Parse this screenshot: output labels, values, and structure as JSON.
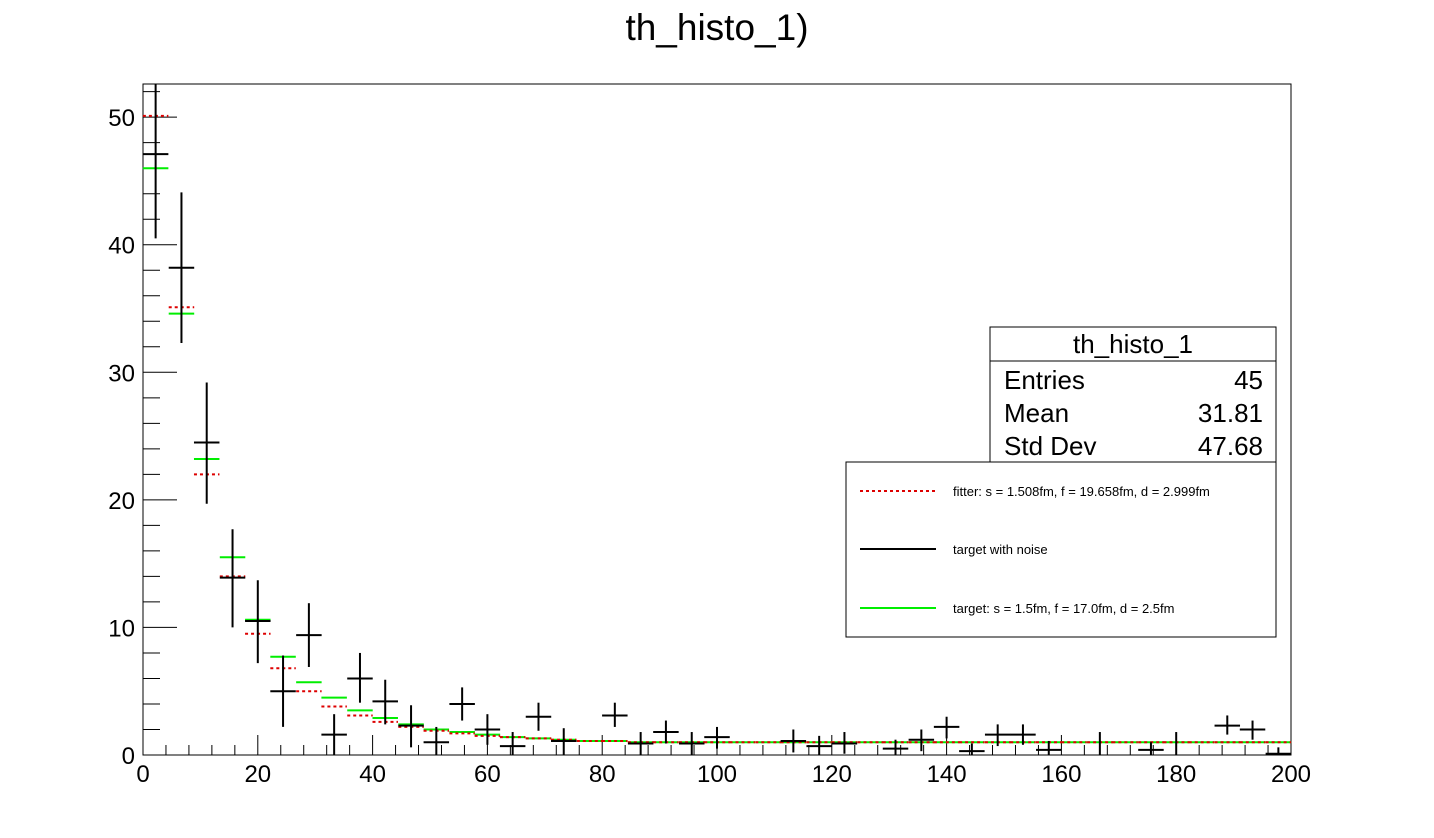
{
  "chart_data": {
    "type": "histogram",
    "title": "th_histo_1)",
    "xlabel": "",
    "ylabel": "",
    "xlim": [
      0,
      200
    ],
    "ylim": [
      0,
      52.6
    ],
    "grid": false,
    "bin_width": 4.44,
    "x_ticks": [
      0,
      20,
      40,
      60,
      80,
      100,
      120,
      140,
      160,
      180,
      200
    ],
    "y_ticks": [
      0,
      10,
      20,
      30,
      40,
      50
    ],
    "series": [
      {
        "name": "target with noise",
        "style": "error-cross",
        "color": "#000000",
        "points": [
          {
            "x": 2.2,
            "y": 47.1,
            "lo": 40.5,
            "hi": 52.6
          },
          {
            "x": 6.7,
            "y": 38.2,
            "lo": 32.3,
            "hi": 44.1
          },
          {
            "x": 11.1,
            "y": 24.5,
            "lo": 19.7,
            "hi": 29.2
          },
          {
            "x": 15.6,
            "y": 13.9,
            "lo": 10.0,
            "hi": 17.7
          },
          {
            "x": 20.0,
            "y": 10.5,
            "lo": 7.2,
            "hi": 13.7
          },
          {
            "x": 24.4,
            "y": 5.0,
            "lo": 2.2,
            "hi": 7.8
          },
          {
            "x": 28.9,
            "y": 9.4,
            "lo": 6.9,
            "hi": 11.9
          },
          {
            "x": 33.3,
            "y": 1.6,
            "lo": 0.0,
            "hi": 3.2
          },
          {
            "x": 37.8,
            "y": 6.0,
            "lo": 4.1,
            "hi": 8.0
          },
          {
            "x": 42.2,
            "y": 4.2,
            "lo": 2.4,
            "hi": 5.9
          },
          {
            "x": 46.7,
            "y": 2.3,
            "lo": 0.6,
            "hi": 3.9
          },
          {
            "x": 51.1,
            "y": 1.0,
            "lo": 0.0,
            "hi": 2.2
          },
          {
            "x": 55.6,
            "y": 4.0,
            "lo": 2.7,
            "hi": 5.3
          },
          {
            "x": 60.0,
            "y": 2.0,
            "lo": 0.8,
            "hi": 3.2
          },
          {
            "x": 64.4,
            "y": 0.7,
            "lo": 0.0,
            "hi": 1.8
          },
          {
            "x": 68.9,
            "y": 3.0,
            "lo": 1.9,
            "hi": 4.1
          },
          {
            "x": 73.3,
            "y": 1.1,
            "lo": 0.0,
            "hi": 2.1
          },
          {
            "x": 82.2,
            "y": 3.1,
            "lo": 2.2,
            "hi": 4.1
          },
          {
            "x": 86.7,
            "y": 0.9,
            "lo": 0.0,
            "hi": 1.8
          },
          {
            "x": 91.1,
            "y": 1.8,
            "lo": 0.9,
            "hi": 2.7
          },
          {
            "x": 95.6,
            "y": 0.9,
            "lo": 0.0,
            "hi": 1.8
          },
          {
            "x": 100.0,
            "y": 1.4,
            "lo": 0.5,
            "hi": 2.2
          },
          {
            "x": 113.3,
            "y": 1.1,
            "lo": 0.2,
            "hi": 2.0
          },
          {
            "x": 117.8,
            "y": 0.7,
            "lo": 0.0,
            "hi": 1.5
          },
          {
            "x": 122.2,
            "y": 0.9,
            "lo": 0.1,
            "hi": 1.8
          },
          {
            "x": 131.1,
            "y": 0.5,
            "lo": 0.0,
            "hi": 1.2
          },
          {
            "x": 135.6,
            "y": 1.2,
            "lo": 0.3,
            "hi": 2.0
          },
          {
            "x": 140.0,
            "y": 2.2,
            "lo": 1.3,
            "hi": 3.0
          },
          {
            "x": 144.4,
            "y": 0.3,
            "lo": 0.0,
            "hi": 0.9
          },
          {
            "x": 148.9,
            "y": 1.6,
            "lo": 0.7,
            "hi": 2.4
          },
          {
            "x": 153.3,
            "y": 1.6,
            "lo": 0.8,
            "hi": 2.4
          },
          {
            "x": 157.8,
            "y": 0.4,
            "lo": 0.0,
            "hi": 1.1
          },
          {
            "x": 175.6,
            "y": 0.4,
            "lo": 0.0,
            "hi": 1.0
          },
          {
            "x": 188.9,
            "y": 2.3,
            "lo": 1.6,
            "hi": 3.1
          },
          {
            "x": 193.3,
            "y": 2.0,
            "lo": 1.2,
            "hi": 2.7
          },
          {
            "x": 197.8,
            "y": 0.1,
            "lo": 0.0,
            "hi": 0.6
          }
        ],
        "bare_bars": [
          {
            "x": 166.7,
            "lo": 0.0,
            "hi": 1.8
          },
          {
            "x": 180.0,
            "lo": 0.0,
            "hi": 1.8
          }
        ]
      },
      {
        "name": "target: s = 1.5fm, f = 17.0fm, d = 2.5fm",
        "style": "step-marker",
        "color": "#00ee00",
        "points": [
          {
            "x": 2.2,
            "y": 46.0
          },
          {
            "x": 6.7,
            "y": 34.6
          },
          {
            "x": 11.1,
            "y": 23.2
          },
          {
            "x": 15.6,
            "y": 15.5
          },
          {
            "x": 20.0,
            "y": 10.6
          },
          {
            "x": 24.4,
            "y": 7.7
          },
          {
            "x": 28.9,
            "y": 5.7
          },
          {
            "x": 33.3,
            "y": 4.5
          },
          {
            "x": 37.8,
            "y": 3.5
          },
          {
            "x": 42.2,
            "y": 2.9
          },
          {
            "x": 46.7,
            "y": 2.4
          },
          {
            "x": 51.1,
            "y": 2.0
          },
          {
            "x": 55.6,
            "y": 1.8
          },
          {
            "x": 60.0,
            "y": 1.6
          },
          {
            "x": 64.4,
            "y": 1.4
          },
          {
            "x": 68.9,
            "y": 1.3
          },
          {
            "x": 73.3,
            "y": 1.2
          },
          {
            "x": 77.8,
            "y": 1.1
          },
          {
            "x": 82.2,
            "y": 1.1
          },
          {
            "x": 86.7,
            "y": 1.0
          },
          {
            "x": 91.1,
            "y": 1.0
          },
          {
            "x": 95.6,
            "y": 1.0
          },
          {
            "x": 100.0,
            "y": 1.0
          },
          {
            "x": 104.4,
            "y": 1.0
          },
          {
            "x": 108.9,
            "y": 1.0
          },
          {
            "x": 113.3,
            "y": 1.0
          },
          {
            "x": 117.8,
            "y": 1.0
          },
          {
            "x": 122.2,
            "y": 1.0
          },
          {
            "x": 126.7,
            "y": 1.0
          },
          {
            "x": 131.1,
            "y": 1.0
          },
          {
            "x": 135.6,
            "y": 1.0
          },
          {
            "x": 140.0,
            "y": 1.0
          },
          {
            "x": 144.4,
            "y": 1.0
          },
          {
            "x": 148.9,
            "y": 1.0
          },
          {
            "x": 153.3,
            "y": 1.0
          },
          {
            "x": 157.8,
            "y": 1.0
          },
          {
            "x": 162.2,
            "y": 1.0
          },
          {
            "x": 166.7,
            "y": 1.0
          },
          {
            "x": 171.1,
            "y": 1.0
          },
          {
            "x": 175.6,
            "y": 1.0
          },
          {
            "x": 180.0,
            "y": 1.0
          },
          {
            "x": 184.4,
            "y": 1.0
          },
          {
            "x": 188.9,
            "y": 1.0
          },
          {
            "x": 193.3,
            "y": 1.0
          },
          {
            "x": 197.8,
            "y": 1.0
          }
        ]
      },
      {
        "name": "fitter: s = 1.508fm, f = 19.658fm, d = 2.999fm",
        "style": "step-marker-dotted",
        "color": "#dd0000",
        "points": [
          {
            "x": 2.2,
            "y": 50.1
          },
          {
            "x": 6.7,
            "y": 35.1
          },
          {
            "x": 11.1,
            "y": 22.0
          },
          {
            "x": 15.6,
            "y": 14.0
          },
          {
            "x": 20.0,
            "y": 9.5
          },
          {
            "x": 24.4,
            "y": 6.8
          },
          {
            "x": 28.9,
            "y": 5.0
          },
          {
            "x": 33.3,
            "y": 3.8
          },
          {
            "x": 37.8,
            "y": 3.1
          },
          {
            "x": 42.2,
            "y": 2.6
          },
          {
            "x": 46.7,
            "y": 2.2
          },
          {
            "x": 51.1,
            "y": 1.9
          },
          {
            "x": 55.6,
            "y": 1.7
          },
          {
            "x": 60.0,
            "y": 1.5
          },
          {
            "x": 64.4,
            "y": 1.4
          },
          {
            "x": 68.9,
            "y": 1.3
          },
          {
            "x": 73.3,
            "y": 1.2
          },
          {
            "x": 77.8,
            "y": 1.1
          },
          {
            "x": 82.2,
            "y": 1.1
          },
          {
            "x": 86.7,
            "y": 1.0
          },
          {
            "x": 91.1,
            "y": 1.0
          },
          {
            "x": 95.6,
            "y": 1.0
          },
          {
            "x": 100.0,
            "y": 1.0
          },
          {
            "x": 104.4,
            "y": 1.0
          },
          {
            "x": 108.9,
            "y": 1.0
          },
          {
            "x": 113.3,
            "y": 1.0
          },
          {
            "x": 117.8,
            "y": 1.0
          },
          {
            "x": 122.2,
            "y": 1.0
          },
          {
            "x": 126.7,
            "y": 1.0
          },
          {
            "x": 131.1,
            "y": 1.0
          },
          {
            "x": 135.6,
            "y": 1.0
          },
          {
            "x": 140.0,
            "y": 1.0
          },
          {
            "x": 144.4,
            "y": 1.0
          },
          {
            "x": 148.9,
            "y": 1.0
          },
          {
            "x": 153.3,
            "y": 1.0
          },
          {
            "x": 157.8,
            "y": 1.0
          },
          {
            "x": 162.2,
            "y": 1.0
          },
          {
            "x": 166.7,
            "y": 1.0
          },
          {
            "x": 171.1,
            "y": 1.0
          },
          {
            "x": 175.6,
            "y": 1.0
          },
          {
            "x": 180.0,
            "y": 1.0
          },
          {
            "x": 184.4,
            "y": 1.0
          },
          {
            "x": 188.9,
            "y": 1.0
          },
          {
            "x": 193.3,
            "y": 1.0
          },
          {
            "x": 197.8,
            "y": 1.0
          }
        ]
      }
    ],
    "stats_box": {
      "title": "th_histo_1",
      "rows": [
        {
          "label": "Entries",
          "value": "45"
        },
        {
          "label": "Mean",
          "value": "31.81"
        },
        {
          "label": "Std Dev",
          "value": "47.68"
        }
      ]
    },
    "legend": {
      "placement": "right",
      "entries": [
        {
          "label": "fitter: s = 1.508fm, f = 19.658fm, d = 2.999fm",
          "color": "#dd0000",
          "style": "dotted"
        },
        {
          "label": "target with noise",
          "color": "#000000",
          "style": "solid"
        },
        {
          "label": "target: s = 1.5fm, f = 17.0fm, d = 2.5fm",
          "color": "#00ee00",
          "style": "solid"
        }
      ]
    }
  }
}
